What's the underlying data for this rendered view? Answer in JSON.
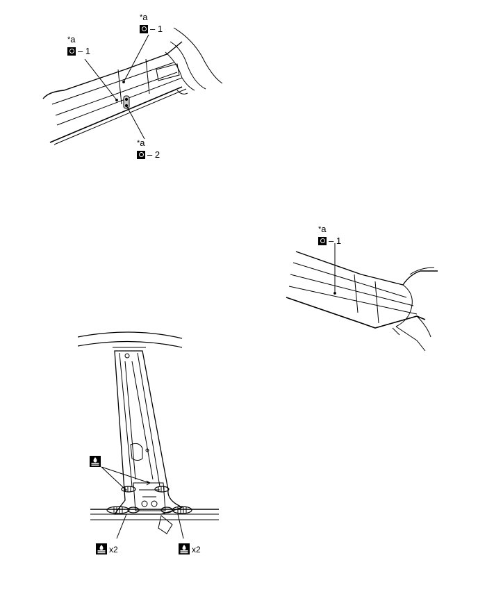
{
  "callouts": [
    {
      "id": "a1",
      "prefix": "*",
      "letter": "a",
      "dash_num": "– 1"
    },
    {
      "id": "a2",
      "prefix": "*",
      "letter": "a",
      "dash_num": "– 1"
    },
    {
      "id": "a3",
      "prefix": "*",
      "letter": "a",
      "dash_num": "– 2"
    },
    {
      "id": "a4",
      "prefix": "*",
      "letter": "a",
      "dash_num": "– 1"
    }
  ],
  "quantities": {
    "left": "x2",
    "right": "x2"
  },
  "icons": {
    "point_marker": "point-circle-icon",
    "sealer": "sealer-drop-icon"
  }
}
